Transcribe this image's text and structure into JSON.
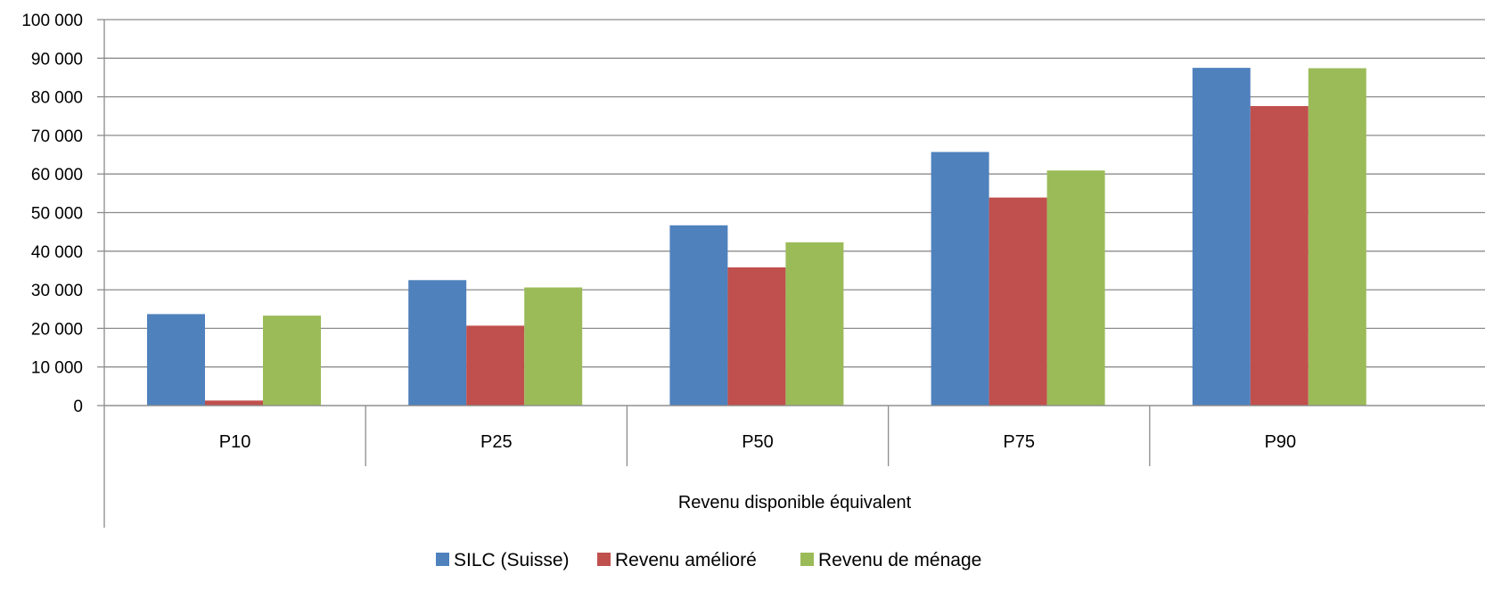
{
  "chart_data": {
    "type": "bar",
    "title": "",
    "xlabel": "Revenu disponible équivalent",
    "ylabel": "",
    "categories": [
      "P10",
      "P25",
      "P50",
      "P75",
      "P90"
    ],
    "ylim": [
      0,
      100000
    ],
    "yticks": [
      0,
      10000,
      20000,
      30000,
      40000,
      50000,
      60000,
      70000,
      80000,
      90000,
      100000
    ],
    "ytick_labels": [
      "0",
      "10 000",
      "20 000",
      "30 000",
      "40 000",
      "50 000",
      "60 000",
      "70 000",
      "80 000",
      "90 000",
      "100 000"
    ],
    "grid": true,
    "legend_position": "bottom",
    "series": [
      {
        "name": "SILC (Suisse)",
        "color": "#4F81BD",
        "values": [
          23700,
          32500,
          46700,
          65700,
          87500
        ]
      },
      {
        "name": "Revenu amélioré",
        "color": "#C0504D",
        "values": [
          1300,
          20700,
          35800,
          53900,
          77600
        ]
      },
      {
        "name": "Revenu de ménage",
        "color": "#9BBB59",
        "values": [
          23300,
          30600,
          42300,
          60900,
          87400
        ]
      }
    ]
  }
}
